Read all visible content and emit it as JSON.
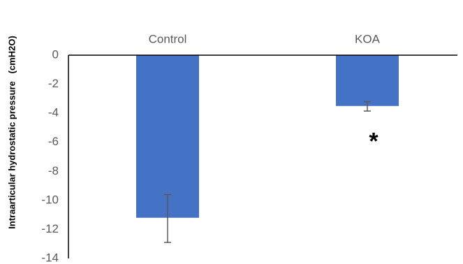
{
  "chart_data": {
    "type": "bar",
    "categories": [
      "Control",
      "KOA"
    ],
    "values": [
      -11.2,
      -3.5
    ],
    "error_low": [
      -12.9,
      -3.85
    ],
    "error_high": [
      -9.6,
      -3.2
    ],
    "ylabel": "Intraarticular hydrostatic pressure   (cmH2O)",
    "ylim": [
      -14,
      0
    ],
    "yticks": [
      0,
      -2,
      -4,
      -6,
      -8,
      -10,
      -12,
      -14
    ],
    "ytick_labels": [
      "0",
      "-2",
      "-4",
      "-6",
      "-8",
      "-10",
      "-12",
      "-14"
    ],
    "grid": false,
    "bar_color": "#4472C4",
    "error_color": "#595959",
    "axis_color": "#000000",
    "annotations": [
      {
        "text": "*",
        "category": "KOA",
        "y": -5.8
      }
    ]
  }
}
